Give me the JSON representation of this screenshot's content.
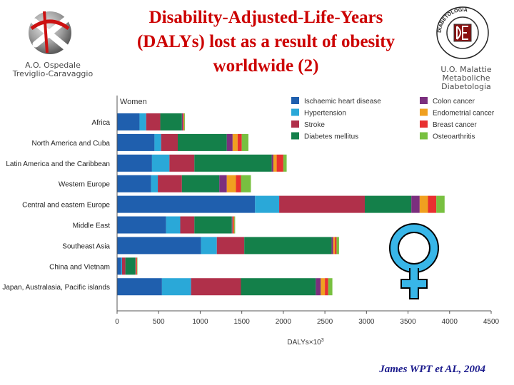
{
  "header": {
    "title_lines": [
      "Disability-Adjusted-Life-Years",
      "(DALYs) lost as a result of obesity",
      "worldwide (2)"
    ],
    "hospital_lines": [
      "A.O. Ospedale",
      "Treviglio-Caravaggio"
    ],
    "unit_lines": [
      "U.O. Malattie",
      "Metaboliche",
      "Diabetologia"
    ],
    "left_logo_icon": "red-cross-sphere-icon",
    "right_logo_icon": "diabetologia-seal-icon",
    "right_logo_text": "DIABETOLOGIA"
  },
  "chart_data": {
    "type": "bar",
    "orientation": "horizontal",
    "stacked": true,
    "panel_label": "Women",
    "xlabel": "DALYs×10",
    "xlabel_superscript": "3",
    "xlim": [
      0,
      4500
    ],
    "xticks": [
      0,
      500,
      1000,
      1500,
      2000,
      2500,
      3000,
      3500,
      4000,
      4500
    ],
    "grid": false,
    "legend_position": "top-right",
    "categories": [
      "Africa",
      "North America and Cuba",
      "Latin America and the Caribbean",
      "Western Europe",
      "Central and eastern Europe",
      "Middle East",
      "Southeast Asia",
      "China and Vietnam",
      "Japan, Australasia, Pacific islands"
    ],
    "series": [
      {
        "name": "Ischaemic heart disease",
        "color": "#1f5fae",
        "values": [
          270,
          450,
          420,
          410,
          1660,
          590,
          1010,
          50,
          540
        ]
      },
      {
        "name": "Hypertension",
        "color": "#2aa8d8",
        "values": [
          80,
          80,
          210,
          80,
          290,
          170,
          190,
          10,
          350
        ]
      },
      {
        "name": "Stroke",
        "color": "#b0304a",
        "values": [
          170,
          200,
          300,
          290,
          1030,
          170,
          330,
          40,
          600
        ]
      },
      {
        "name": "Diabetes mellitus",
        "color": "#14804a",
        "values": [
          260,
          590,
          930,
          450,
          560,
          450,
          1050,
          120,
          900
        ]
      },
      {
        "name": "Colon cancer",
        "color": "#7b2f7e",
        "values": [
          10,
          70,
          20,
          90,
          100,
          10,
          20,
          5,
          60
        ]
      },
      {
        "name": "Endometrial cancer",
        "color": "#f0a020",
        "values": [
          5,
          60,
          40,
          110,
          100,
          10,
          20,
          5,
          50
        ]
      },
      {
        "name": "Breast cancer",
        "color": "#e83030",
        "values": [
          10,
          50,
          80,
          60,
          100,
          10,
          20,
          10,
          40
        ]
      },
      {
        "name": "Osteoarthritis",
        "color": "#78c040",
        "values": [
          10,
          80,
          40,
          120,
          100,
          10,
          30,
          5,
          50
        ]
      }
    ]
  },
  "female_symbol_icon": "female-venus-symbol-icon",
  "citation": "James WPT et AL, 2004"
}
